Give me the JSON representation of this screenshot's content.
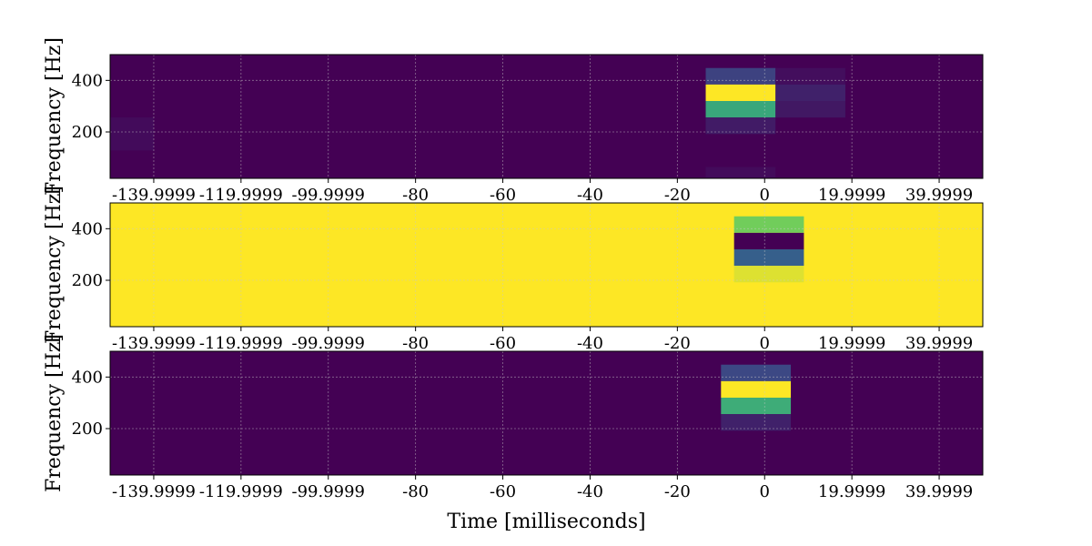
{
  "colors": {
    "background": "#440154",
    "grid": "#c8c8c8",
    "axis": "#000000",
    "colormap": [
      "#440154",
      "#3b528b",
      "#21918c",
      "#5ec962",
      "#fde725"
    ]
  },
  "chart_data": [
    {
      "type": "heatmap",
      "colormap": "viridis",
      "xlim": [
        -150,
        50
      ],
      "ylim": [
        20,
        500
      ],
      "x_ticks": [
        -139.9999,
        -119.9999,
        -99.9999,
        -80,
        -60,
        -40,
        -20,
        0,
        19.9999,
        39.9999
      ],
      "x_tick_labels": [
        "-139.9999",
        "-119.9999",
        "-99.9999",
        "-80",
        "-60",
        "-40",
        "-20",
        "0",
        "19.9999",
        "39.9999"
      ],
      "y_ticks": [
        200,
        400
      ],
      "y_tick_labels": [
        "200",
        "400"
      ],
      "ylabel": "Frequency [Hz]",
      "xlabel": "",
      "grid": true,
      "background_level": 0.0,
      "cells": [
        {
          "t": [
            -13.5,
            2.5
          ],
          "f": [
            384,
            448
          ],
          "level": 0.2
        },
        {
          "t": [
            -13.5,
            2.5
          ],
          "f": [
            320,
            384
          ],
          "level": 1.0
        },
        {
          "t": [
            -13.5,
            2.5
          ],
          "f": [
            256,
            320
          ],
          "level": 0.6
        },
        {
          "t": [
            -13.5,
            2.5
          ],
          "f": [
            192,
            256
          ],
          "level": 0.08
        },
        {
          "t": [
            2.5,
            18.5
          ],
          "f": [
            384,
            448
          ],
          "level": 0.04
        },
        {
          "t": [
            2.5,
            18.5
          ],
          "f": [
            320,
            384
          ],
          "level": 0.1
        },
        {
          "t": [
            2.5,
            18.5
          ],
          "f": [
            256,
            320
          ],
          "level": 0.07
        },
        {
          "t": [
            -13.5,
            2.5
          ],
          "f": [
            20,
            64
          ],
          "level": 0.03
        },
        {
          "t": [
            -150,
            -140
          ],
          "f": [
            128,
            256
          ],
          "level": 0.03
        }
      ]
    },
    {
      "type": "heatmap",
      "colormap": "viridis",
      "xlim": [
        -150,
        50
      ],
      "ylim": [
        20,
        500
      ],
      "x_ticks": [
        -139.9999,
        -119.9999,
        -99.9999,
        -80,
        -60,
        -40,
        -20,
        0,
        19.9999,
        39.9999
      ],
      "x_tick_labels": [
        "-139.9999",
        "-119.9999",
        "-99.9999",
        "-80",
        "-60",
        "-40",
        "-20",
        "0",
        "19.9999",
        "39.9999"
      ],
      "y_ticks": [
        200,
        400
      ],
      "y_tick_labels": [
        "200",
        "400"
      ],
      "ylabel": "Frequency [Hz]",
      "xlabel": "",
      "grid": true,
      "background_level": 1.0,
      "cells": [
        {
          "t": [
            -7,
            9
          ],
          "f": [
            384,
            448
          ],
          "level": 0.78
        },
        {
          "t": [
            -7,
            9
          ],
          "f": [
            320,
            384
          ],
          "level": 0.0
        },
        {
          "t": [
            -7,
            9
          ],
          "f": [
            256,
            320
          ],
          "level": 0.3
        },
        {
          "t": [
            -7,
            9
          ],
          "f": [
            192,
            256
          ],
          "level": 0.95
        }
      ]
    },
    {
      "type": "heatmap",
      "colormap": "viridis",
      "xlim": [
        -150,
        50
      ],
      "ylim": [
        20,
        500
      ],
      "x_ticks": [
        -139.9999,
        -119.9999,
        -99.9999,
        -80,
        -60,
        -40,
        -20,
        0,
        19.9999,
        39.9999
      ],
      "x_tick_labels": [
        "-139.9999",
        "-119.9999",
        "-99.9999",
        "-80",
        "-60",
        "-40",
        "-20",
        "0",
        "19.9999",
        "39.9999"
      ],
      "y_ticks": [
        200,
        400
      ],
      "y_tick_labels": [
        "200",
        "400"
      ],
      "ylabel": "Frequency [Hz]",
      "xlabel": "Time [milliseconds]",
      "grid": true,
      "background_level": 0.0,
      "cells": [
        {
          "t": [
            -10,
            6
          ],
          "f": [
            384,
            448
          ],
          "level": 0.22
        },
        {
          "t": [
            -10,
            6
          ],
          "f": [
            320,
            384
          ],
          "level": 1.0
        },
        {
          "t": [
            -10,
            6
          ],
          "f": [
            256,
            320
          ],
          "level": 0.62
        },
        {
          "t": [
            -10,
            6
          ],
          "f": [
            192,
            256
          ],
          "level": 0.1
        }
      ]
    }
  ]
}
